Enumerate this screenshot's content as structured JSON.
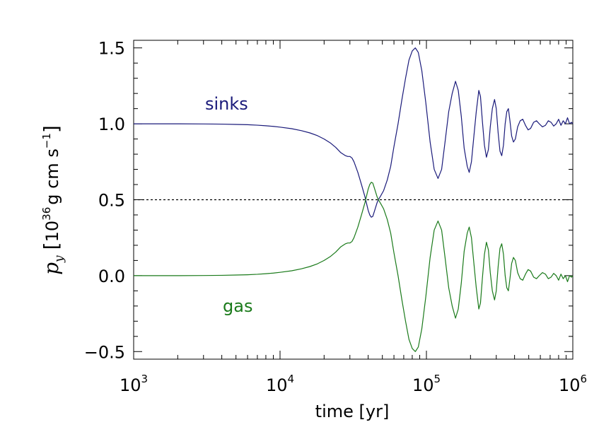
{
  "chart_data": {
    "type": "line",
    "xlabel": "time [yr]",
    "ylabel": {
      "symbol": "p",
      "subscript": "y",
      "bracket_open": "[",
      "base": "10",
      "exponent": "36",
      "units": "g cm s",
      "units_exponent": "−1",
      "bracket_close": "]"
    },
    "x_scale": "log",
    "xlim": [
      1000,
      1000000
    ],
    "ylim": [
      -0.55,
      1.55
    ],
    "x_ticks": [
      {
        "value": 1000,
        "base": "10",
        "exp": "3"
      },
      {
        "value": 10000,
        "base": "10",
        "exp": "4"
      },
      {
        "value": 100000,
        "base": "10",
        "exp": "5"
      },
      {
        "value": 1000000,
        "base": "10",
        "exp": "6"
      }
    ],
    "y_ticks": [
      {
        "value": -0.5,
        "label": "−0.5"
      },
      {
        "value": 0.0,
        "label": "0.0"
      },
      {
        "value": 0.5,
        "label": "0.5"
      },
      {
        "value": 1.0,
        "label": "1.0"
      },
      {
        "value": 1.5,
        "label": "1.5"
      }
    ],
    "reference_line": {
      "y": 0.5,
      "style": "dotted"
    },
    "series": [
      {
        "name": "sinks",
        "color": "#1a1a7a",
        "points": [
          [
            1000,
            1.0
          ],
          [
            2000,
            1.0
          ],
          [
            3000,
            0.999
          ],
          [
            4000,
            0.998
          ],
          [
            5000,
            0.996
          ],
          [
            6000,
            0.994
          ],
          [
            7000,
            0.991
          ],
          [
            8000,
            0.987
          ],
          [
            9000,
            0.983
          ],
          [
            10000,
            0.978
          ],
          [
            12000,
            0.968
          ],
          [
            14000,
            0.955
          ],
          [
            16000,
            0.94
          ],
          [
            18000,
            0.922
          ],
          [
            20000,
            0.9
          ],
          [
            22000,
            0.875
          ],
          [
            24000,
            0.845
          ],
          [
            26000,
            0.81
          ],
          [
            28000,
            0.79
          ],
          [
            29000,
            0.785
          ],
          [
            30000,
            0.785
          ],
          [
            31000,
            0.775
          ],
          [
            32000,
            0.75
          ],
          [
            34000,
            0.68
          ],
          [
            36000,
            0.6
          ],
          [
            38000,
            0.52
          ],
          [
            40000,
            0.43
          ],
          [
            41000,
            0.4
          ],
          [
            42000,
            0.385
          ],
          [
            43000,
            0.39
          ],
          [
            44000,
            0.42
          ],
          [
            45000,
            0.45
          ],
          [
            46000,
            0.48
          ],
          [
            47000,
            0.5
          ],
          [
            49000,
            0.53
          ],
          [
            51000,
            0.56
          ],
          [
            54000,
            0.63
          ],
          [
            57000,
            0.72
          ],
          [
            60000,
            0.85
          ],
          [
            64000,
            1.0
          ],
          [
            68000,
            1.16
          ],
          [
            72000,
            1.3
          ],
          [
            76000,
            1.42
          ],
          [
            80000,
            1.48
          ],
          [
            84000,
            1.5
          ],
          [
            88000,
            1.47
          ],
          [
            93000,
            1.35
          ],
          [
            99000,
            1.14
          ],
          [
            106000,
            0.88
          ],
          [
            113000,
            0.7
          ],
          [
            120000,
            0.64
          ],
          [
            127000,
            0.7
          ],
          [
            134000,
            0.88
          ],
          [
            142000,
            1.08
          ],
          [
            150000,
            1.2
          ],
          [
            158000,
            1.28
          ],
          [
            165000,
            1.22
          ],
          [
            173000,
            1.05
          ],
          [
            181000,
            0.84
          ],
          [
            190000,
            0.72
          ],
          [
            196000,
            0.68
          ],
          [
            203000,
            0.75
          ],
          [
            211000,
            0.92
          ],
          [
            219000,
            1.08
          ],
          [
            228000,
            1.22
          ],
          [
            234000,
            1.18
          ],
          [
            241000,
            1.02
          ],
          [
            249000,
            0.86
          ],
          [
            257000,
            0.78
          ],
          [
            265000,
            0.83
          ],
          [
            273000,
            0.98
          ],
          [
            282000,
            1.1
          ],
          [
            292000,
            1.16
          ],
          [
            300000,
            1.1
          ],
          [
            309000,
            0.94
          ],
          [
            318000,
            0.82
          ],
          [
            327000,
            0.79
          ],
          [
            336000,
            0.86
          ],
          [
            345000,
            1.0
          ],
          [
            354000,
            1.08
          ],
          [
            363000,
            1.1
          ],
          [
            372000,
            1.02
          ],
          [
            382000,
            0.92
          ],
          [
            393000,
            0.88
          ],
          [
            405000,
            0.9
          ],
          [
            420000,
            0.98
          ],
          [
            437000,
            1.02
          ],
          [
            455000,
            1.03
          ],
          [
            475000,
            0.99
          ],
          [
            495000,
            0.96
          ],
          [
            515000,
            0.97
          ],
          [
            540000,
            1.01
          ],
          [
            565000,
            1.02
          ],
          [
            590000,
            1.0
          ],
          [
            620000,
            0.98
          ],
          [
            650000,
            0.99
          ],
          [
            680000,
            1.02
          ],
          [
            710000,
            1.01
          ],
          [
            740000,
            0.985
          ],
          [
            770000,
            1.0
          ],
          [
            800000,
            1.03
          ],
          [
            830000,
            0.99
          ],
          [
            860000,
            1.02
          ],
          [
            890000,
            1.0
          ],
          [
            920000,
            1.04
          ],
          [
            950000,
            1.0
          ],
          [
            980000,
            1.01
          ],
          [
            1000000,
            1.0
          ]
        ]
      },
      {
        "name": "gas",
        "color": "#1a7a1a",
        "points": [
          [
            1000,
            0.0
          ],
          [
            2000,
            0.0
          ],
          [
            3000,
            0.001
          ],
          [
            4000,
            0.002
          ],
          [
            5000,
            0.004
          ],
          [
            6000,
            0.006
          ],
          [
            7000,
            0.009
          ],
          [
            8000,
            0.013
          ],
          [
            9000,
            0.017
          ],
          [
            10000,
            0.022
          ],
          [
            12000,
            0.032
          ],
          [
            14000,
            0.045
          ],
          [
            16000,
            0.06
          ],
          [
            18000,
            0.078
          ],
          [
            20000,
            0.1
          ],
          [
            22000,
            0.125
          ],
          [
            24000,
            0.155
          ],
          [
            26000,
            0.19
          ],
          [
            28000,
            0.21
          ],
          [
            29000,
            0.215
          ],
          [
            30000,
            0.215
          ],
          [
            31000,
            0.225
          ],
          [
            32000,
            0.25
          ],
          [
            34000,
            0.32
          ],
          [
            36000,
            0.4
          ],
          [
            38000,
            0.48
          ],
          [
            40000,
            0.57
          ],
          [
            41000,
            0.6
          ],
          [
            42000,
            0.615
          ],
          [
            43000,
            0.61
          ],
          [
            44000,
            0.58
          ],
          [
            45000,
            0.55
          ],
          [
            46000,
            0.52
          ],
          [
            47000,
            0.5
          ],
          [
            49000,
            0.47
          ],
          [
            51000,
            0.44
          ],
          [
            54000,
            0.37
          ],
          [
            57000,
            0.28
          ],
          [
            60000,
            0.15
          ],
          [
            64000,
            0.0
          ],
          [
            68000,
            -0.16
          ],
          [
            72000,
            -0.3
          ],
          [
            76000,
            -0.42
          ],
          [
            80000,
            -0.48
          ],
          [
            84000,
            -0.5
          ],
          [
            88000,
            -0.47
          ],
          [
            93000,
            -0.35
          ],
          [
            99000,
            -0.14
          ],
          [
            106000,
            0.12
          ],
          [
            113000,
            0.3
          ],
          [
            120000,
            0.36
          ],
          [
            127000,
            0.3
          ],
          [
            134000,
            0.12
          ],
          [
            142000,
            -0.08
          ],
          [
            150000,
            -0.2
          ],
          [
            158000,
            -0.28
          ],
          [
            165000,
            -0.22
          ],
          [
            173000,
            -0.05
          ],
          [
            181000,
            0.16
          ],
          [
            190000,
            0.28
          ],
          [
            196000,
            0.32
          ],
          [
            203000,
            0.25
          ],
          [
            211000,
            0.08
          ],
          [
            219000,
            -0.08
          ],
          [
            228000,
            -0.22
          ],
          [
            234000,
            -0.18
          ],
          [
            241000,
            -0.02
          ],
          [
            249000,
            0.14
          ],
          [
            257000,
            0.22
          ],
          [
            265000,
            0.17
          ],
          [
            273000,
            0.02
          ],
          [
            282000,
            -0.1
          ],
          [
            292000,
            -0.16
          ],
          [
            300000,
            -0.1
          ],
          [
            309000,
            0.06
          ],
          [
            318000,
            0.18
          ],
          [
            327000,
            0.21
          ],
          [
            336000,
            0.14
          ],
          [
            345000,
            0.0
          ],
          [
            354000,
            -0.08
          ],
          [
            363000,
            -0.1
          ],
          [
            372000,
            -0.02
          ],
          [
            382000,
            0.08
          ],
          [
            393000,
            0.12
          ],
          [
            405000,
            0.1
          ],
          [
            420000,
            0.02
          ],
          [
            437000,
            -0.02
          ],
          [
            455000,
            -0.03
          ],
          [
            475000,
            0.01
          ],
          [
            495000,
            0.04
          ],
          [
            515000,
            0.03
          ],
          [
            540000,
            -0.01
          ],
          [
            565000,
            -0.02
          ],
          [
            590000,
            0.0
          ],
          [
            620000,
            0.02
          ],
          [
            650000,
            0.01
          ],
          [
            680000,
            -0.02
          ],
          [
            710000,
            -0.01
          ],
          [
            740000,
            0.015
          ],
          [
            770000,
            0.0
          ],
          [
            800000,
            -0.03
          ],
          [
            830000,
            0.01
          ],
          [
            860000,
            -0.02
          ],
          [
            890000,
            0.0
          ],
          [
            920000,
            -0.04
          ],
          [
            950000,
            0.0
          ],
          [
            980000,
            -0.01
          ],
          [
            1000000,
            0.0
          ]
        ]
      }
    ]
  }
}
